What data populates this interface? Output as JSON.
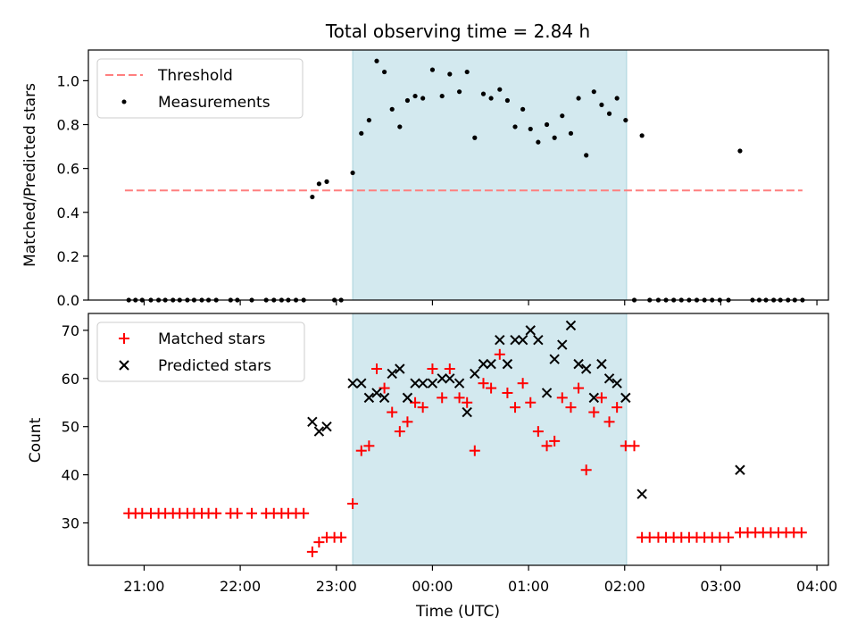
{
  "chart_data": {
    "title": "Total observing time = 2.84 h",
    "xlabel": "Time (UTC)",
    "x_unit": "hours UTC (values past 24 are the next day)",
    "xlim": [
      20.42,
      28.12
    ],
    "xticks": [
      21,
      22,
      23,
      24,
      25,
      26,
      27,
      28
    ],
    "xtick_labels": [
      "21:00",
      "22:00",
      "23:00",
      "00:00",
      "01:00",
      "02:00",
      "03:00",
      "04:00"
    ],
    "shaded_region": [
      23.17,
      26.02
    ],
    "shade_color": "#d3e9ef",
    "panels": [
      {
        "type": "scatter",
        "ylabel": "Matched/Predicted stars",
        "ylim": [
          0,
          1.14
        ],
        "yticks": [
          0.0,
          0.2,
          0.4,
          0.6,
          0.8,
          1.0
        ],
        "ytick_labels": [
          "0.0",
          "0.2",
          "0.4",
          "0.6",
          "0.8",
          "1.0"
        ],
        "legend": "upper-left",
        "threshold": {
          "name": "Threshold",
          "value": 0.5,
          "x_range": [
            20.8,
            27.85
          ],
          "color": "#ff7f7f"
        },
        "series": [
          {
            "name": "Measurements",
            "color": "#000000",
            "marker": "dot",
            "points": [
              [
                20.84,
                0
              ],
              [
                20.91,
                0
              ],
              [
                20.98,
                0
              ],
              [
                21.07,
                0
              ],
              [
                21.15,
                0
              ],
              [
                21.22,
                0
              ],
              [
                21.3,
                0
              ],
              [
                21.37,
                0
              ],
              [
                21.45,
                0
              ],
              [
                21.52,
                0
              ],
              [
                21.6,
                0
              ],
              [
                21.67,
                0
              ],
              [
                21.75,
                0
              ],
              [
                21.9,
                0
              ],
              [
                21.97,
                0
              ],
              [
                22.12,
                0
              ],
              [
                22.27,
                0
              ],
              [
                22.35,
                0
              ],
              [
                22.43,
                0
              ],
              [
                22.5,
                0
              ],
              [
                22.58,
                0
              ],
              [
                22.66,
                0
              ],
              [
                22.75,
                0.47
              ],
              [
                22.82,
                0.53
              ],
              [
                22.9,
                0.54
              ],
              [
                22.98,
                0
              ],
              [
                23.05,
                0
              ],
              [
                23.17,
                0.58
              ],
              [
                23.26,
                0.76
              ],
              [
                23.34,
                0.82
              ],
              [
                23.42,
                1.09
              ],
              [
                23.5,
                1.04
              ],
              [
                23.58,
                0.87
              ],
              [
                23.66,
                0.79
              ],
              [
                23.74,
                0.91
              ],
              [
                23.82,
                0.93
              ],
              [
                23.9,
                0.92
              ],
              [
                24.0,
                1.05
              ],
              [
                24.1,
                0.93
              ],
              [
                24.18,
                1.03
              ],
              [
                24.28,
                0.95
              ],
              [
                24.36,
                1.04
              ],
              [
                24.44,
                0.74
              ],
              [
                24.53,
                0.94
              ],
              [
                24.61,
                0.92
              ],
              [
                24.7,
                0.96
              ],
              [
                24.78,
                0.91
              ],
              [
                24.86,
                0.79
              ],
              [
                24.94,
                0.87
              ],
              [
                25.02,
                0.78
              ],
              [
                25.1,
                0.72
              ],
              [
                25.19,
                0.8
              ],
              [
                25.27,
                0.74
              ],
              [
                25.35,
                0.84
              ],
              [
                25.44,
                0.76
              ],
              [
                25.52,
                0.92
              ],
              [
                25.6,
                0.66
              ],
              [
                25.68,
                0.95
              ],
              [
                25.76,
                0.89
              ],
              [
                25.84,
                0.85
              ],
              [
                25.92,
                0.92
              ],
              [
                26.01,
                0.82
              ],
              [
                26.1,
                0
              ],
              [
                26.18,
                0.75
              ],
              [
                26.26,
                0
              ],
              [
                26.35,
                0
              ],
              [
                26.43,
                0
              ],
              [
                26.51,
                0
              ],
              [
                26.59,
                0
              ],
              [
                26.67,
                0
              ],
              [
                26.75,
                0
              ],
              [
                26.83,
                0
              ],
              [
                26.91,
                0
              ],
              [
                26.99,
                0
              ],
              [
                27.08,
                0
              ],
              [
                27.2,
                0.68
              ],
              [
                27.33,
                0
              ],
              [
                27.4,
                0
              ],
              [
                27.47,
                0
              ],
              [
                27.55,
                0
              ],
              [
                27.62,
                0
              ],
              [
                27.7,
                0
              ],
              [
                27.77,
                0
              ],
              [
                27.85,
                0
              ]
            ]
          }
        ]
      },
      {
        "type": "scatter",
        "ylabel": "Count",
        "ylim": [
          21.2,
          73.5
        ],
        "yticks": [
          30,
          40,
          50,
          60,
          70
        ],
        "ytick_labels": [
          "30",
          "40",
          "50",
          "60",
          "70"
        ],
        "legend": "upper-left",
        "series": [
          {
            "name": "Matched stars",
            "color": "#ff0000",
            "marker": "plus",
            "points": [
              [
                20.84,
                32
              ],
              [
                20.91,
                32
              ],
              [
                20.98,
                32
              ],
              [
                21.07,
                32
              ],
              [
                21.15,
                32
              ],
              [
                21.22,
                32
              ],
              [
                21.3,
                32
              ],
              [
                21.37,
                32
              ],
              [
                21.45,
                32
              ],
              [
                21.52,
                32
              ],
              [
                21.6,
                32
              ],
              [
                21.67,
                32
              ],
              [
                21.75,
                32
              ],
              [
                21.9,
                32
              ],
              [
                21.97,
                32
              ],
              [
                22.12,
                32
              ],
              [
                22.27,
                32
              ],
              [
                22.35,
                32
              ],
              [
                22.43,
                32
              ],
              [
                22.5,
                32
              ],
              [
                22.58,
                32
              ],
              [
                22.66,
                32
              ],
              [
                22.75,
                24
              ],
              [
                22.82,
                26
              ],
              [
                22.9,
                27
              ],
              [
                22.98,
                27
              ],
              [
                23.05,
                27
              ],
              [
                23.17,
                34
              ],
              [
                23.26,
                45
              ],
              [
                23.34,
                46
              ],
              [
                23.42,
                62
              ],
              [
                23.5,
                58
              ],
              [
                23.58,
                53
              ],
              [
                23.66,
                49
              ],
              [
                23.74,
                51
              ],
              [
                23.82,
                55
              ],
              [
                23.9,
                54
              ],
              [
                24.0,
                62
              ],
              [
                24.1,
                56
              ],
              [
                24.18,
                62
              ],
              [
                24.28,
                56
              ],
              [
                24.36,
                55
              ],
              [
                24.44,
                45
              ],
              [
                24.53,
                59
              ],
              [
                24.61,
                58
              ],
              [
                24.7,
                65
              ],
              [
                24.78,
                57
              ],
              [
                24.86,
                54
              ],
              [
                24.94,
                59
              ],
              [
                25.02,
                55
              ],
              [
                25.1,
                49
              ],
              [
                25.19,
                46
              ],
              [
                25.27,
                47
              ],
              [
                25.35,
                56
              ],
              [
                25.44,
                54
              ],
              [
                25.52,
                58
              ],
              [
                25.6,
                41
              ],
              [
                25.68,
                53
              ],
              [
                25.76,
                56
              ],
              [
                25.84,
                51
              ],
              [
                25.92,
                54
              ],
              [
                26.01,
                46
              ],
              [
                26.1,
                46
              ],
              [
                26.18,
                27
              ],
              [
                26.26,
                27
              ],
              [
                26.35,
                27
              ],
              [
                26.43,
                27
              ],
              [
                26.51,
                27
              ],
              [
                26.59,
                27
              ],
              [
                26.67,
                27
              ],
              [
                26.75,
                27
              ],
              [
                26.83,
                27
              ],
              [
                26.91,
                27
              ],
              [
                26.99,
                27
              ],
              [
                27.08,
                27
              ],
              [
                27.2,
                28
              ],
              [
                27.28,
                28
              ],
              [
                27.36,
                28
              ],
              [
                27.44,
                28
              ],
              [
                27.52,
                28
              ],
              [
                27.6,
                28
              ],
              [
                27.68,
                28
              ],
              [
                27.76,
                28
              ],
              [
                27.84,
                28
              ]
            ]
          },
          {
            "name": "Predicted stars",
            "color": "#000000",
            "marker": "x",
            "points": [
              [
                22.75,
                51
              ],
              [
                22.82,
                49
              ],
              [
                22.9,
                50
              ],
              [
                23.17,
                59
              ],
              [
                23.26,
                59
              ],
              [
                23.34,
                56
              ],
              [
                23.42,
                57
              ],
              [
                23.5,
                56
              ],
              [
                23.58,
                61
              ],
              [
                23.66,
                62
              ],
              [
                23.74,
                56
              ],
              [
                23.82,
                59
              ],
              [
                23.9,
                59
              ],
              [
                24.0,
                59
              ],
              [
                24.1,
                60
              ],
              [
                24.18,
                60
              ],
              [
                24.28,
                59
              ],
              [
                24.36,
                53
              ],
              [
                24.44,
                61
              ],
              [
                24.53,
                63
              ],
              [
                24.61,
                63
              ],
              [
                24.7,
                68
              ],
              [
                24.78,
                63
              ],
              [
                24.86,
                68
              ],
              [
                24.94,
                68
              ],
              [
                25.02,
                70
              ],
              [
                25.1,
                68
              ],
              [
                25.19,
                57
              ],
              [
                25.27,
                64
              ],
              [
                25.35,
                67
              ],
              [
                25.44,
                71
              ],
              [
                25.52,
                63
              ],
              [
                25.6,
                62
              ],
              [
                25.68,
                56
              ],
              [
                25.76,
                63
              ],
              [
                25.84,
                60
              ],
              [
                25.92,
                59
              ],
              [
                26.01,
                56
              ],
              [
                26.18,
                36
              ],
              [
                27.2,
                41
              ]
            ]
          }
        ]
      }
    ]
  }
}
